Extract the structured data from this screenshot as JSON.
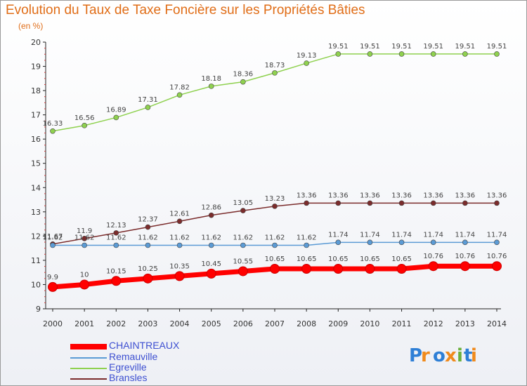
{
  "header": {
    "title": "Evolution du Taux de Taxe Foncière sur les Propriétés Bâties",
    "unit": "(en %)"
  },
  "logo_text": "Proxiti",
  "chart_data": {
    "type": "line",
    "title": "Evolution du Taux de Taxe Foncière sur les Propriétés Bâties",
    "ylabel": "(en %)",
    "xlabel": "",
    "ylim": [
      9,
      20
    ],
    "yticks": [
      9,
      10,
      11,
      12,
      13,
      14,
      15,
      16,
      17,
      18,
      19,
      20
    ],
    "x": [
      2000,
      2001,
      2002,
      2003,
      2004,
      2005,
      2006,
      2007,
      2008,
      2009,
      2010,
      2011,
      2012,
      2013,
      2014
    ],
    "legend_position": "bottom-left",
    "grid": false,
    "series": [
      {
        "name": "CHAINTREAUX",
        "color": "#ff0000",
        "values": [
          9.9,
          10,
          10.15,
          10.25,
          10.35,
          10.45,
          10.55,
          10.65,
          10.65,
          10.65,
          10.65,
          10.65,
          10.76,
          10.76,
          10.76
        ],
        "labels": [
          "9.9",
          "10",
          "10.15",
          "10.25",
          "10.35",
          "10.45",
          "10.55",
          "10.65",
          "10.65",
          "10.65",
          "10.65",
          "10.65",
          "10.76",
          "10.76",
          "10.76"
        ]
      },
      {
        "name": "Remauville",
        "color": "#5b9bd5",
        "values": [
          11.62,
          11.62,
          11.62,
          11.62,
          11.62,
          11.62,
          11.62,
          11.62,
          11.62,
          11.74,
          11.74,
          11.74,
          11.74,
          11.74,
          11.74
        ],
        "labels": [
          "11.62",
          "11.62",
          "11.62",
          "11.62",
          "11.62",
          "11.62",
          "11.62",
          "11.62",
          "11.62",
          "11.74",
          "11.74",
          "11.74",
          "11.74",
          "11.74",
          "11.74"
        ]
      },
      {
        "name": "Egreville",
        "color": "#8fd14f",
        "values": [
          16.33,
          16.56,
          16.89,
          17.31,
          17.82,
          18.18,
          18.36,
          18.73,
          19.13,
          19.51,
          19.51,
          19.51,
          19.51,
          19.51,
          19.51
        ],
        "labels": [
          "16.33",
          "16.56",
          "16.89",
          "17.31",
          "17.82",
          "18.18",
          "18.36",
          "18.73",
          "19.13",
          "19.51",
          "19.51",
          "19.51",
          "19.51",
          "19.51",
          "19.51"
        ]
      },
      {
        "name": "Bransles",
        "color": "#7b2c2c",
        "values": [
          11.67,
          11.9,
          12.13,
          12.37,
          12.61,
          12.86,
          13.05,
          13.23,
          13.36,
          13.36,
          13.36,
          13.36,
          13.36,
          13.36,
          13.36
        ],
        "labels": [
          "11.67",
          "11.9",
          "12.13",
          "12.37",
          "12.61",
          "12.86",
          "13.05",
          "13.23",
          "13.36",
          "13.36",
          "13.36",
          "13.36",
          "13.36",
          "13.36",
          "13.36"
        ]
      }
    ]
  }
}
